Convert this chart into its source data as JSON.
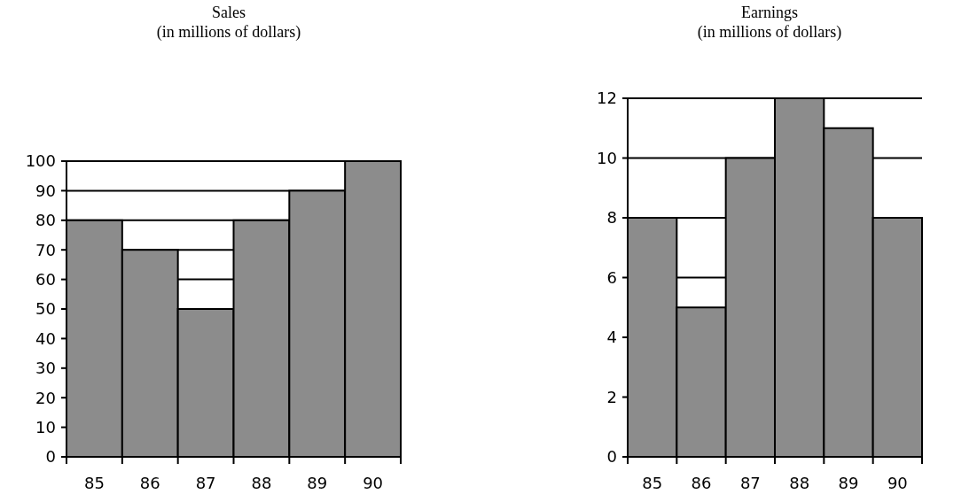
{
  "chart_data": [
    {
      "type": "bar",
      "title": "Sales\n(in millions of dollars)",
      "categories": [
        "85",
        "86",
        "87",
        "88",
        "89",
        "90"
      ],
      "values": [
        80,
        70,
        50,
        80,
        90,
        100
      ],
      "color": "#8c8c8c",
      "ylim": [
        0,
        100
      ],
      "yticks": [
        0,
        10,
        20,
        30,
        40,
        50,
        60,
        70,
        80,
        90,
        100
      ],
      "grid": "y"
    },
    {
      "type": "bar",
      "title": "Earnings\n(in millions of dollars)",
      "categories": [
        "85",
        "86",
        "87",
        "88",
        "89",
        "90"
      ],
      "values": [
        8,
        5,
        10,
        12,
        11,
        8
      ],
      "color": "#8c8c8c",
      "ylim": [
        0,
        12
      ],
      "yticks": [
        0,
        2,
        4,
        6,
        8,
        10,
        12
      ],
      "grid": "y"
    }
  ]
}
